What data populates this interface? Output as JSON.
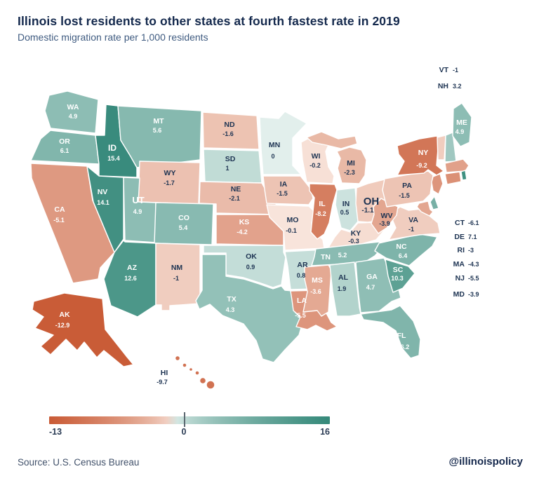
{
  "header": {
    "title": "Illinois lost residents to other states at fourth fastest rate in 2019",
    "subtitle": "Domestic migration rate per 1,000 residents"
  },
  "legend": {
    "min_label": "-13",
    "zero_label": "0",
    "max_label": "16"
  },
  "footer": {
    "source": "Source: U.S. Census Bureau",
    "handle": "@illinoispolicy"
  },
  "colors": {
    "negative_strong": "#c95b36",
    "negative_light": "#fbece4",
    "positive_light": "#e2efec",
    "positive_strong": "#35897a",
    "label_on_dark": "#ffffff",
    "label_on_light": "#1d3352",
    "title_navy": "#14294d"
  },
  "chart_data": {
    "type": "choropleth",
    "title": "Illinois lost residents to other states at fourth fastest rate in 2019",
    "subtitle": "Domestic migration rate per 1,000 residents",
    "unit": "net domestic migration per 1,000 residents",
    "scale": {
      "min": -13,
      "mid": 0,
      "max": 16
    },
    "legend_labels": [
      "-13",
      "0",
      "16"
    ],
    "states": [
      {
        "abbr": "WA",
        "value": 4.9
      },
      {
        "abbr": "OR",
        "value": 6.1
      },
      {
        "abbr": "CA",
        "value": -5.1
      },
      {
        "abbr": "ID",
        "value": 15.4
      },
      {
        "abbr": "NV",
        "value": 14.1
      },
      {
        "abbr": "MT",
        "value": 5.6
      },
      {
        "abbr": "WY",
        "value": -1.7
      },
      {
        "abbr": "UT",
        "value": 4.9
      },
      {
        "abbr": "CO",
        "value": 5.4
      },
      {
        "abbr": "AZ",
        "value": 12.6
      },
      {
        "abbr": "NM",
        "value": -1
      },
      {
        "abbr": "ND",
        "value": -1.6
      },
      {
        "abbr": "SD",
        "value": 1
      },
      {
        "abbr": "NE",
        "value": -2.1
      },
      {
        "abbr": "KS",
        "value": -4.2
      },
      {
        "abbr": "OK",
        "value": 0.9
      },
      {
        "abbr": "TX",
        "value": 4.3
      },
      {
        "abbr": "MN",
        "value": 0
      },
      {
        "abbr": "IA",
        "value": -1.5
      },
      {
        "abbr": "MO",
        "value": -0.1
      },
      {
        "abbr": "AR",
        "value": 0.8
      },
      {
        "abbr": "LA",
        "value": -5.5
      },
      {
        "abbr": "WI",
        "value": -0.2
      },
      {
        "abbr": "IL",
        "value": -8.2
      },
      {
        "abbr": "MI",
        "value": -2.3
      },
      {
        "abbr": "IN",
        "value": 0.5
      },
      {
        "abbr": "OH",
        "value": -1.1
      },
      {
        "abbr": "KY",
        "value": -0.3
      },
      {
        "abbr": "TN",
        "value": 5.2
      },
      {
        "abbr": "MS",
        "value": -3.6
      },
      {
        "abbr": "AL",
        "value": 1.9
      },
      {
        "abbr": "GA",
        "value": 4.7
      },
      {
        "abbr": "FL",
        "value": 6.2
      },
      {
        "abbr": "SC",
        "value": 10.3
      },
      {
        "abbr": "NC",
        "value": 6.4
      },
      {
        "abbr": "VA",
        "value": -1
      },
      {
        "abbr": "WV",
        "value": -3.9
      },
      {
        "abbr": "PA",
        "value": -1.5
      },
      {
        "abbr": "NY",
        "value": -9.2
      },
      {
        "abbr": "NJ",
        "value": -5.5
      },
      {
        "abbr": "DE",
        "value": 7.1
      },
      {
        "abbr": "MD",
        "value": -3.9
      },
      {
        "abbr": "VT",
        "value": -1
      },
      {
        "abbr": "NH",
        "value": 3.2
      },
      {
        "abbr": "ME",
        "value": 4.9
      },
      {
        "abbr": "MA",
        "value": -4.3
      },
      {
        "abbr": "CT",
        "value": -6.1
      },
      {
        "abbr": "RI",
        "value": -3
      },
      {
        "abbr": "AK",
        "value": -12.9
      },
      {
        "abbr": "HI",
        "value": -9.7
      }
    ]
  }
}
